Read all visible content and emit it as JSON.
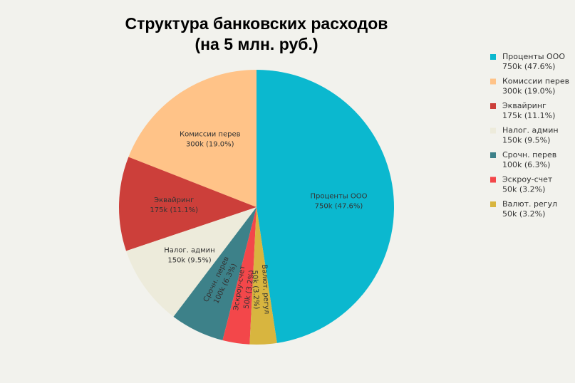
{
  "chart_data": {
    "type": "pie",
    "title": "Структура банковских расходов",
    "subtitle": "(на 5 млн. руб.)",
    "categories": [
      "Проценты ООО",
      "Комиссии перев",
      "Эквайринг",
      "Налог. админ",
      "Срочн. перев",
      "Эскроу-счет",
      "Валют. регул"
    ],
    "values": [
      750,
      300,
      175,
      150,
      100,
      50,
      50
    ],
    "value_labels": [
      "750k (47.6%)",
      "300k (19.0%)",
      "175k (11.1%)",
      "150k (9.5%)",
      "100k (6.3%)",
      "50k (3.2%)",
      "50k (3.2%)"
    ],
    "colors": [
      "#0bb8cf",
      "#ffc388",
      "#cc3f3a",
      "#edebdb",
      "#3d8189",
      "#f3474a",
      "#d8b53f"
    ]
  }
}
